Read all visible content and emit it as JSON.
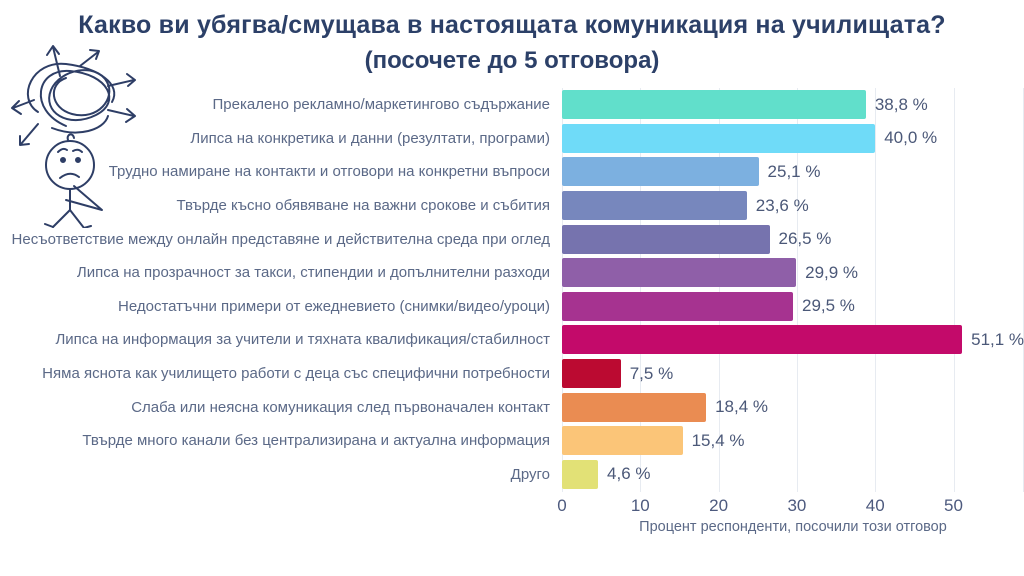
{
  "title": {
    "line1": "Какво ви убягва/смущава в настоящата комуникация на училищата?",
    "line2": "(посочете до 5 отговора)"
  },
  "illustration": {
    "name": "confused-person-doodle",
    "color": "#2e3e66"
  },
  "chart_data": {
    "type": "bar",
    "orientation": "horizontal",
    "title": "Какво ви убягва/смущава в настоящата комуникация на училищата? (посочете до 5 отговора)",
    "categories": [
      "Прекалено рекламно/маркетингово съдържание",
      "Липса на конкретика и данни (резултати, програми)",
      "Трудно намиране на контакти и отговори на конкретни въпроси",
      "Твърде късно обявяване на важни срокове и събития",
      "Несъответствие между онлайн представяне и действителна среда при оглед",
      "Липса на прозрачност за такси, стипендии и допълнителни разходи",
      "Недостатъчни примери от ежедневието (снимки/видео/уроци)",
      "Липса на информация за учители и тяхната квалификация/стабилност",
      "Няма яснота как училището работи с деца със специфични потребности",
      "Слаба или неясна комуникация след първоначален контакт",
      "Твърде много канали без централизирана и актуална информация",
      "Друго"
    ],
    "values": [
      38.8,
      40.0,
      25.1,
      23.6,
      26.5,
      29.9,
      29.5,
      51.1,
      7.5,
      18.4,
      15.4,
      4.6
    ],
    "value_labels": [
      "38,8 %",
      "40,0 %",
      "25,1 %",
      "23,6 %",
      "26,5 %",
      "29,9 %",
      "29,5 %",
      "51,1 %",
      "7,5 %",
      "18,4 %",
      "15,4 %",
      "4,6 %"
    ],
    "bar_colors": [
      "#61dfcb",
      "#6fdbf8",
      "#7cb0e0",
      "#7787bd",
      "#7673ae",
      "#8f5fa8",
      "#a63390",
      "#c30a6a",
      "#bb0a31",
      "#ea8c52",
      "#fbc578",
      "#e2e176"
    ],
    "xlabel": "Процент респонденти, посочили този отговор",
    "xticks": [
      0,
      10,
      20,
      30,
      40,
      50
    ],
    "xlim": [
      0,
      59
    ],
    "grid": true,
    "legend": false
  }
}
